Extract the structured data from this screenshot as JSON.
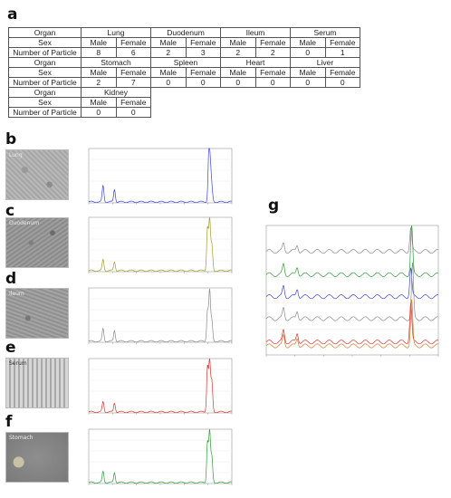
{
  "panels": {
    "a": "a",
    "b": "b",
    "c": "c",
    "d": "d",
    "e": "e",
    "f": "f",
    "g": "g"
  },
  "table": {
    "row_headers": [
      "Organ",
      "Sex",
      "Number of Particle"
    ],
    "groups": [
      {
        "organs": [
          "Lung",
          "Duodenum",
          "Ileum",
          "Serum"
        ],
        "male": [
          8,
          2,
          2,
          0
        ],
        "female": [
          6,
          3,
          2,
          1
        ]
      },
      {
        "organs": [
          "Stomach",
          "Spleen",
          "Heart",
          "Liver"
        ],
        "male": [
          2,
          0,
          0,
          0
        ],
        "female": [
          7,
          0,
          0,
          0
        ]
      },
      {
        "organs": [
          "Kidney"
        ],
        "male": [
          0
        ],
        "female": [
          0
        ]
      }
    ],
    "male_label": "Male",
    "female_label": "Female"
  },
  "micrographs": {
    "b": "Lung",
    "c": "Duodenum",
    "d": "Ileum",
    "e": "Serum",
    "f": "Stomach"
  },
  "colors": {
    "blue": "#3b44d8",
    "olive": "#a89a2a",
    "gray": "#8a8a8a",
    "red": "#d8342e",
    "green": "#2f9a3a",
    "orange": "#d47a2e"
  },
  "chart_data": [
    {
      "type": "line",
      "panel": "b",
      "series": [
        {
          "color": "blue",
          "peaks": [
            [
              0.1,
              0.32
            ],
            [
              0.18,
              0.25
            ],
            [
              0.84,
              1.0
            ],
            [
              0.85,
              0.55
            ],
            [
              0.86,
              0.25
            ]
          ]
        }
      ]
    },
    {
      "type": "line",
      "panel": "c",
      "series": [
        {
          "color": "olive",
          "peaks": [
            [
              0.1,
              0.22
            ],
            [
              0.18,
              0.18
            ],
            [
              0.83,
              0.85
            ],
            [
              0.845,
              1.0
            ],
            [
              0.86,
              0.5
            ]
          ]
        }
      ]
    },
    {
      "type": "line",
      "panel": "d",
      "series": [
        {
          "color": "gray",
          "peaks": [
            [
              0.1,
              0.25
            ],
            [
              0.18,
              0.22
            ],
            [
              0.83,
              0.6
            ],
            [
              0.845,
              1.0
            ],
            [
              0.86,
              0.4
            ]
          ]
        }
      ]
    },
    {
      "type": "line",
      "panel": "e",
      "series": [
        {
          "color": "red",
          "peaks": [
            [
              0.1,
              0.2
            ],
            [
              0.18,
              0.18
            ],
            [
              0.83,
              0.9
            ],
            [
              0.845,
              1.0
            ],
            [
              0.86,
              0.6
            ]
          ]
        }
      ]
    },
    {
      "type": "line",
      "panel": "f",
      "series": [
        {
          "color": "green",
          "peaks": [
            [
              0.1,
              0.22
            ],
            [
              0.18,
              0.2
            ],
            [
              0.83,
              0.8
            ],
            [
              0.845,
              1.0
            ],
            [
              0.86,
              0.5
            ]
          ]
        }
      ]
    },
    {
      "type": "line",
      "panel": "g",
      "series": [
        {
          "color": "gray",
          "offset": 0.78,
          "peaks": [
            [
              0.1,
              0.06
            ],
            [
              0.18,
              0.05
            ],
            [
              0.84,
              0.18
            ]
          ]
        },
        {
          "color": "green",
          "offset": 0.6,
          "peaks": [
            [
              0.1,
              0.08
            ],
            [
              0.18,
              0.06
            ],
            [
              0.845,
              0.38
            ]
          ]
        },
        {
          "color": "blue",
          "offset": 0.43,
          "peaks": [
            [
              0.1,
              0.08
            ],
            [
              0.18,
              0.06
            ],
            [
              0.84,
              0.22
            ]
          ]
        },
        {
          "color": "gray",
          "offset": 0.26,
          "peaks": [
            [
              0.1,
              0.08
            ],
            [
              0.18,
              0.06
            ],
            [
              0.85,
              0.42
            ]
          ]
        },
        {
          "color": "red",
          "offset": 0.08,
          "peaks": [
            [
              0.1,
              0.09
            ],
            [
              0.18,
              0.07
            ],
            [
              0.84,
              0.3
            ]
          ]
        },
        {
          "color": "orange",
          "offset": 0.05,
          "peaks": [
            [
              0.1,
              0.08
            ],
            [
              0.18,
              0.06
            ],
            [
              0.845,
              0.35
            ]
          ]
        }
      ]
    }
  ]
}
